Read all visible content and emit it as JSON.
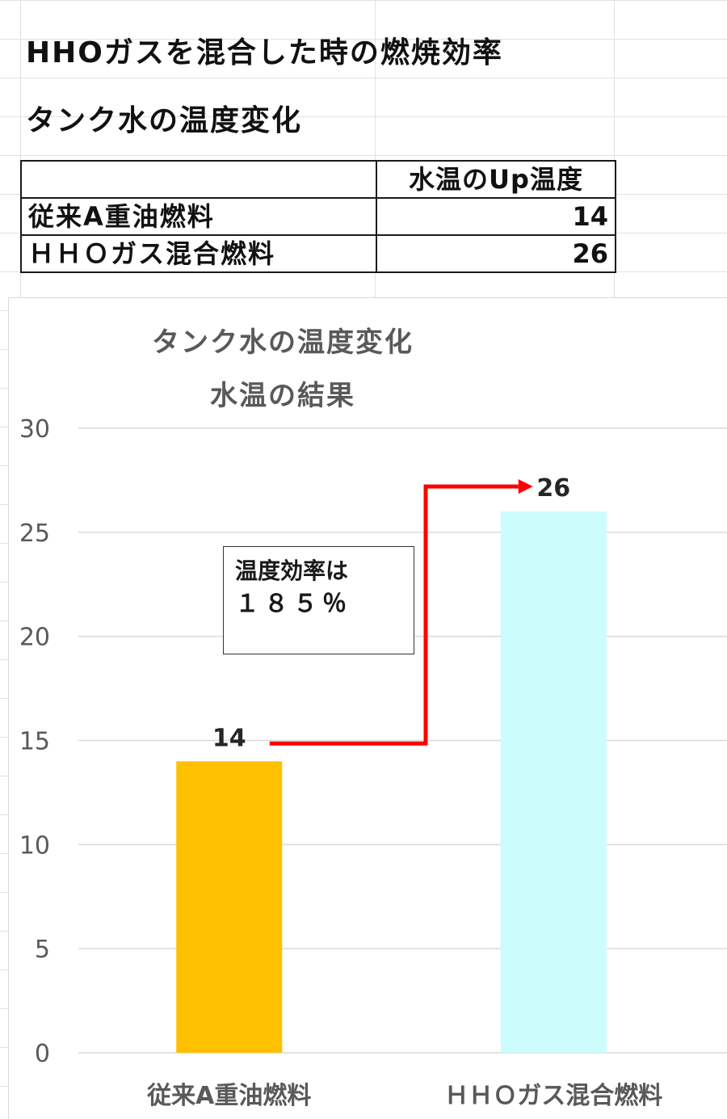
{
  "sheet": {
    "title": "HHOガスを混合した時の燃焼効率",
    "subtitle": "タンク水の温度変化"
  },
  "table": {
    "header": [
      "",
      "水温のUp温度"
    ],
    "rows": [
      {
        "label": "従来A重油燃料",
        "value": "14"
      },
      {
        "label": "ＨＨＯガス混合燃料",
        "value": "26"
      }
    ]
  },
  "callout": {
    "line1": "温度効率は",
    "line2": "１８５％"
  },
  "chart_data": {
    "type": "bar",
    "title": "タンク水の温度変化",
    "subtitle": "水温の結果",
    "categories": [
      "従来A重油燃料",
      "ＨＨＯガス混合燃料"
    ],
    "values": [
      14,
      26
    ],
    "data_labels": [
      "14",
      "26"
    ],
    "ylim": [
      0,
      30
    ],
    "yticks": [
      0,
      5,
      10,
      15,
      20,
      25,
      30
    ],
    "grid": true,
    "legend": "none",
    "colors": [
      "#ffc000",
      "#ccfcfc"
    ],
    "arrow_color": "#ff0000"
  }
}
